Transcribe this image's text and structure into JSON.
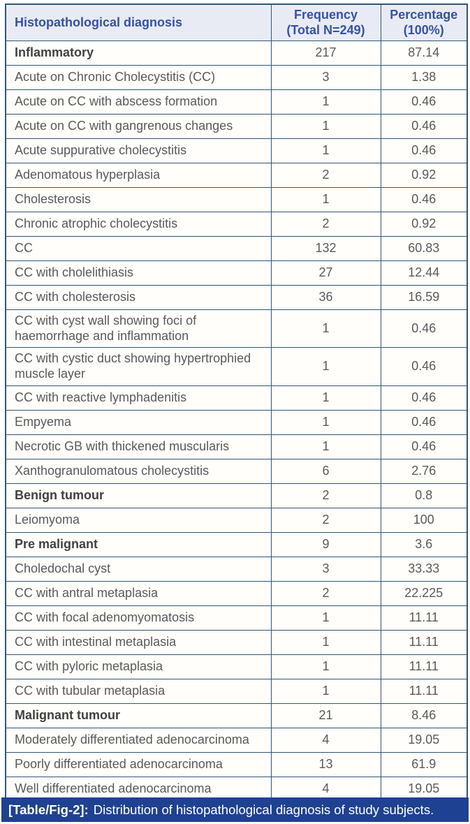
{
  "colors": {
    "border": "#2f5777",
    "header_bg": "#e9ebf4",
    "header_text": "#3652a3",
    "body_text": "#58595b",
    "category_text": "#414143",
    "caption_bg": "#1e4191",
    "caption_text": "#ffffff",
    "body_bg": "#fffefa"
  },
  "table": {
    "columns": [
      "Histopathological diagnosis",
      "Frequency (Total N=249)",
      "Percentage (100%)"
    ],
    "rows": [
      {
        "diagnosis": "Inflammatory",
        "frequency": "217",
        "percentage": "87.14",
        "bold": true
      },
      {
        "diagnosis": "Acute on Chronic Cholecystitis (CC)",
        "frequency": "3",
        "percentage": "1.38",
        "bold": false
      },
      {
        "diagnosis": "Acute on CC with abscess formation",
        "frequency": "1",
        "percentage": "0.46",
        "bold": false
      },
      {
        "diagnosis": "Acute on CC with gangrenous changes",
        "frequency": "1",
        "percentage": "0.46",
        "bold": false
      },
      {
        "diagnosis": "Acute suppurative cholecystitis",
        "frequency": "1",
        "percentage": "0.46",
        "bold": false
      },
      {
        "diagnosis": "Adenomatous hyperplasia",
        "frequency": "2",
        "percentage": "0.92",
        "bold": false
      },
      {
        "diagnosis": "Cholesterosis",
        "frequency": "1",
        "percentage": "0.46",
        "bold": false
      },
      {
        "diagnosis": "Chronic atrophic cholecystitis",
        "frequency": "2",
        "percentage": "0.92",
        "bold": false
      },
      {
        "diagnosis": "CC",
        "frequency": "132",
        "percentage": "60.83",
        "bold": false
      },
      {
        "diagnosis": "CC with cholelithiasis",
        "frequency": "27",
        "percentage": "12.44",
        "bold": false
      },
      {
        "diagnosis": "CC with cholesterosis",
        "frequency": "36",
        "percentage": "16.59",
        "bold": false
      },
      {
        "diagnosis": "CC with cyst wall showing foci of haemorrhage and inflammation",
        "frequency": "1",
        "percentage": "0.46",
        "bold": false
      },
      {
        "diagnosis": "CC with cystic duct showing hypertrophied muscle layer",
        "frequency": "1",
        "percentage": "0.46",
        "bold": false
      },
      {
        "diagnosis": "CC with reactive lymphadenitis",
        "frequency": "1",
        "percentage": "0.46",
        "bold": false
      },
      {
        "diagnosis": "Empyema",
        "frequency": "1",
        "percentage": "0.46",
        "bold": false
      },
      {
        "diagnosis": "Necrotic GB with thickened muscularis",
        "frequency": "1",
        "percentage": "0.46",
        "bold": false
      },
      {
        "diagnosis": "Xanthogranulomatous cholecystitis",
        "frequency": "6",
        "percentage": "2.76",
        "bold": false
      },
      {
        "diagnosis": "Benign tumour",
        "frequency": "2",
        "percentage": "0.8",
        "bold": true
      },
      {
        "diagnosis": "Leiomyoma",
        "frequency": "2",
        "percentage": "100",
        "bold": false
      },
      {
        "diagnosis": "Pre malignant",
        "frequency": "9",
        "percentage": "3.6",
        "bold": true
      },
      {
        "diagnosis": "Choledochal cyst",
        "frequency": "3",
        "percentage": "33.33",
        "bold": false
      },
      {
        "diagnosis": "CC with antral metaplasia",
        "frequency": "2",
        "percentage": "22.225",
        "bold": false
      },
      {
        "diagnosis": "CC with focal adenomyomatosis",
        "frequency": "1",
        "percentage": "11.11",
        "bold": false
      },
      {
        "diagnosis": "CC with intestinal metaplasia",
        "frequency": "1",
        "percentage": "11.11",
        "bold": false
      },
      {
        "diagnosis": "CC with pyloric metaplasia",
        "frequency": "1",
        "percentage": "11.11",
        "bold": false
      },
      {
        "diagnosis": "CC with tubular metaplasia",
        "frequency": "1",
        "percentage": "11.11",
        "bold": false
      },
      {
        "diagnosis": "Malignant tumour",
        "frequency": "21",
        "percentage": "8.46",
        "bold": true
      },
      {
        "diagnosis": "Moderately differentiated adenocarcinoma",
        "frequency": "4",
        "percentage": "19.05",
        "bold": false
      },
      {
        "diagnosis": "Poorly differentiated adenocarcinoma",
        "frequency": "13",
        "percentage": "61.9",
        "bold": false
      },
      {
        "diagnosis": "Well differentiated adenocarcinoma",
        "frequency": "4",
        "percentage": "19.05",
        "bold": false
      }
    ]
  },
  "caption": {
    "label": "[Table/Fig-2]:",
    "text": "Distribution of histopathological diagnosis of study subjects."
  },
  "chart_data": {
    "type": "table",
    "title": "[Table/Fig-2]: Distribution of histopathological diagnosis of study subjects.",
    "columns": [
      "Histopathological diagnosis",
      "Frequency (Total N=249)",
      "Percentage (100%)"
    ],
    "rows": [
      [
        "Inflammatory",
        217,
        87.14
      ],
      [
        "Acute on Chronic Cholecystitis (CC)",
        3,
        1.38
      ],
      [
        "Acute on CC with abscess formation",
        1,
        0.46
      ],
      [
        "Acute on CC with gangrenous changes",
        1,
        0.46
      ],
      [
        "Acute suppurative cholecystitis",
        1,
        0.46
      ],
      [
        "Adenomatous hyperplasia",
        2,
        0.92
      ],
      [
        "Cholesterosis",
        1,
        0.46
      ],
      [
        "Chronic atrophic cholecystitis",
        2,
        0.92
      ],
      [
        "CC",
        132,
        60.83
      ],
      [
        "CC with cholelithiasis",
        27,
        12.44
      ],
      [
        "CC with cholesterosis",
        36,
        16.59
      ],
      [
        "CC with cyst wall showing foci of haemorrhage and inflammation",
        1,
        0.46
      ],
      [
        "CC with cystic duct showing hypertrophied muscle layer",
        1,
        0.46
      ],
      [
        "CC with reactive lymphadenitis",
        1,
        0.46
      ],
      [
        "Empyema",
        1,
        0.46
      ],
      [
        "Necrotic GB with thickened muscularis",
        1,
        0.46
      ],
      [
        "Xanthogranulomatous cholecystitis",
        6,
        2.76
      ],
      [
        "Benign tumour",
        2,
        0.8
      ],
      [
        "Leiomyoma",
        2,
        100
      ],
      [
        "Pre malignant",
        9,
        3.6
      ],
      [
        "Choledochal cyst",
        3,
        33.33
      ],
      [
        "CC with antral metaplasia",
        2,
        22.225
      ],
      [
        "CC with focal adenomyomatosis",
        1,
        11.11
      ],
      [
        "CC with intestinal metaplasia",
        1,
        11.11
      ],
      [
        "CC with pyloric metaplasia",
        1,
        11.11
      ],
      [
        "CC with tubular metaplasia",
        1,
        11.11
      ],
      [
        "Malignant tumour",
        21,
        8.46
      ],
      [
        "Moderately differentiated adenocarcinoma",
        4,
        19.05
      ],
      [
        "Poorly differentiated adenocarcinoma",
        13,
        61.9
      ],
      [
        "Well differentiated adenocarcinoma",
        4,
        19.05
      ]
    ]
  }
}
